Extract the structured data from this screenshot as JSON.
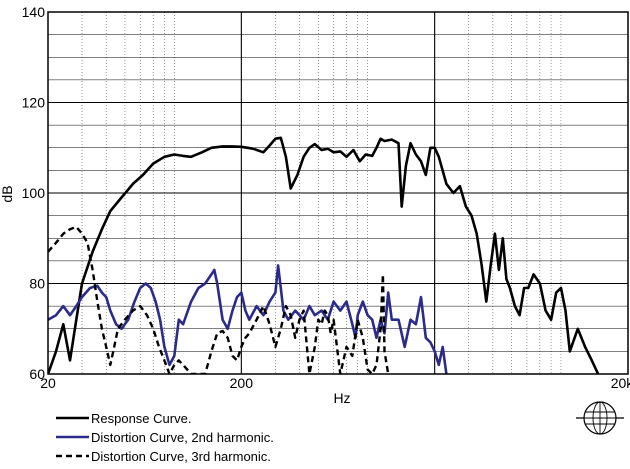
{
  "chart_data": {
    "type": "line",
    "title": "",
    "xlabel": "Hz",
    "ylabel": "dB",
    "x_scale": "log",
    "xlim": [
      20,
      20000
    ],
    "ylim": [
      60,
      140
    ],
    "x_tick_labels": [
      "20",
      "200",
      "20k"
    ],
    "y_ticks": [
      60,
      80,
      100,
      120,
      140
    ],
    "grid": true,
    "legend_position": "bottom-left",
    "series": [
      {
        "name": "Response Curve.",
        "color": "#000000",
        "style": "solid",
        "points": [
          [
            20,
            60
          ],
          [
            22,
            65
          ],
          [
            24,
            71
          ],
          [
            26,
            63
          ],
          [
            28,
            72
          ],
          [
            30,
            80
          ],
          [
            34,
            87
          ],
          [
            38,
            92
          ],
          [
            42,
            96
          ],
          [
            48,
            99
          ],
          [
            55,
            102
          ],
          [
            62,
            104
          ],
          [
            70,
            106.5
          ],
          [
            80,
            108
          ],
          [
            90,
            108.5
          ],
          [
            100,
            108.2
          ],
          [
            110,
            108
          ],
          [
            125,
            109
          ],
          [
            140,
            110
          ],
          [
            160,
            110.3
          ],
          [
            180,
            110.3
          ],
          [
            200,
            110.2
          ],
          [
            230,
            109.8
          ],
          [
            260,
            109
          ],
          [
            280,
            110.5
          ],
          [
            300,
            112
          ],
          [
            320,
            112.2
          ],
          [
            340,
            108
          ],
          [
            360,
            101
          ],
          [
            390,
            104
          ],
          [
            420,
            108
          ],
          [
            450,
            110
          ],
          [
            480,
            110.8
          ],
          [
            520,
            109.5
          ],
          [
            560,
            109.8
          ],
          [
            600,
            109
          ],
          [
            650,
            109.2
          ],
          [
            700,
            108
          ],
          [
            760,
            109.5
          ],
          [
            820,
            107
          ],
          [
            880,
            108.5
          ],
          [
            950,
            108.2
          ],
          [
            1000,
            110
          ],
          [
            1050,
            112
          ],
          [
            1100,
            111.5
          ],
          [
            1200,
            111.8
          ],
          [
            1300,
            111
          ],
          [
            1350,
            97
          ],
          [
            1420,
            106
          ],
          [
            1500,
            111
          ],
          [
            1600,
            108.5
          ],
          [
            1700,
            107
          ],
          [
            1800,
            104
          ],
          [
            1900,
            110
          ],
          [
            2000,
            110
          ],
          [
            2100,
            108
          ],
          [
            2300,
            102
          ],
          [
            2500,
            100
          ],
          [
            2700,
            101.5
          ],
          [
            2900,
            97
          ],
          [
            3100,
            95
          ],
          [
            3300,
            91
          ],
          [
            3500,
            84
          ],
          [
            3700,
            76
          ],
          [
            3900,
            84
          ],
          [
            4100,
            91
          ],
          [
            4300,
            83
          ],
          [
            4500,
            90
          ],
          [
            4700,
            81
          ],
          [
            4900,
            79
          ],
          [
            5200,
            75
          ],
          [
            5500,
            73
          ],
          [
            5800,
            79
          ],
          [
            6100,
            79
          ],
          [
            6500,
            82
          ],
          [
            7000,
            80
          ],
          [
            7500,
            74
          ],
          [
            8000,
            72
          ],
          [
            8500,
            78
          ],
          [
            9000,
            79
          ],
          [
            9500,
            74
          ],
          [
            10000,
            65
          ],
          [
            11000,
            70
          ],
          [
            12000,
            66
          ],
          [
            13000,
            63
          ],
          [
            14000,
            60
          ]
        ]
      },
      {
        "name": "Distortion Curve, 2nd harmonic.",
        "color": "#2b2b8c",
        "style": "solid",
        "points": [
          [
            20,
            72
          ],
          [
            22,
            73
          ],
          [
            24,
            75
          ],
          [
            26,
            73
          ],
          [
            28,
            75
          ],
          [
            30,
            77
          ],
          [
            33,
            79
          ],
          [
            36,
            79.5
          ],
          [
            38,
            78
          ],
          [
            40,
            77
          ],
          [
            42,
            74
          ],
          [
            45,
            71
          ],
          [
            48,
            70
          ],
          [
            52,
            72
          ],
          [
            56,
            76
          ],
          [
            60,
            79
          ],
          [
            64,
            80
          ],
          [
            68,
            79
          ],
          [
            72,
            76
          ],
          [
            76,
            72
          ],
          [
            80,
            66
          ],
          [
            85,
            62
          ],
          [
            90,
            64
          ],
          [
            95,
            72
          ],
          [
            100,
            71
          ],
          [
            110,
            76
          ],
          [
            120,
            79
          ],
          [
            130,
            80
          ],
          [
            140,
            82
          ],
          [
            145,
            83
          ],
          [
            150,
            80
          ],
          [
            155,
            76
          ],
          [
            160,
            72
          ],
          [
            170,
            70
          ],
          [
            180,
            74
          ],
          [
            190,
            77
          ],
          [
            200,
            78
          ],
          [
            210,
            74
          ],
          [
            220,
            72
          ],
          [
            240,
            75
          ],
          [
            260,
            73
          ],
          [
            280,
            76
          ],
          [
            300,
            78
          ],
          [
            310,
            84
          ],
          [
            320,
            79
          ],
          [
            330,
            74
          ],
          [
            350,
            72
          ],
          [
            380,
            74
          ],
          [
            400,
            73
          ],
          [
            420,
            72
          ],
          [
            450,
            75
          ],
          [
            480,
            73
          ],
          [
            520,
            74
          ],
          [
            560,
            72
          ],
          [
            600,
            76
          ],
          [
            650,
            74
          ],
          [
            700,
            76
          ],
          [
            750,
            71
          ],
          [
            780,
            68
          ],
          [
            800,
            73
          ],
          [
            850,
            76
          ],
          [
            900,
            73
          ],
          [
            950,
            72
          ],
          [
            1000,
            68
          ],
          [
            1050,
            72
          ],
          [
            1100,
            69
          ],
          [
            1150,
            78
          ],
          [
            1200,
            72
          ],
          [
            1300,
            72
          ],
          [
            1400,
            66
          ],
          [
            1500,
            72
          ],
          [
            1600,
            71
          ],
          [
            1700,
            77
          ],
          [
            1800,
            68
          ],
          [
            1900,
            67
          ],
          [
            2000,
            65
          ],
          [
            2100,
            62
          ],
          [
            2200,
            66
          ],
          [
            2300,
            60
          ]
        ]
      },
      {
        "name": "Distortion Curve, 3rd harmonic.",
        "color": "#000000",
        "style": "dashed",
        "points": [
          [
            20,
            87
          ],
          [
            22,
            89
          ],
          [
            24,
            91
          ],
          [
            26,
            92
          ],
          [
            28,
            92.5
          ],
          [
            30,
            91
          ],
          [
            32,
            89
          ],
          [
            34,
            83
          ],
          [
            36,
            76
          ],
          [
            38,
            70
          ],
          [
            40,
            66
          ],
          [
            42,
            62
          ],
          [
            44,
            66
          ],
          [
            46,
            70
          ],
          [
            50,
            72
          ],
          [
            55,
            74
          ],
          [
            60,
            75
          ],
          [
            65,
            73
          ],
          [
            70,
            70
          ],
          [
            75,
            66
          ],
          [
            80,
            63
          ],
          [
            85,
            60
          ],
          [
            90,
            62
          ],
          [
            95,
            63
          ],
          [
            100,
            62
          ],
          [
            110,
            60
          ],
          [
            120,
            60
          ],
          [
            130,
            60
          ],
          [
            140,
            65
          ],
          [
            150,
            69
          ],
          [
            160,
            69.5
          ],
          [
            170,
            68
          ],
          [
            180,
            64
          ],
          [
            190,
            63
          ],
          [
            200,
            66
          ],
          [
            210,
            68
          ],
          [
            220,
            69
          ],
          [
            240,
            72
          ],
          [
            260,
            75
          ],
          [
            280,
            71
          ],
          [
            300,
            66
          ],
          [
            320,
            70
          ],
          [
            340,
            75
          ],
          [
            360,
            73
          ],
          [
            380,
            68
          ],
          [
            400,
            72
          ],
          [
            420,
            74
          ],
          [
            450,
            60
          ],
          [
            480,
            66
          ],
          [
            500,
            72
          ],
          [
            520,
            71
          ],
          [
            540,
            74
          ],
          [
            560,
            73
          ],
          [
            580,
            69
          ],
          [
            600,
            72
          ],
          [
            650,
            60
          ],
          [
            700,
            66
          ],
          [
            750,
            64
          ],
          [
            800,
            72
          ],
          [
            850,
            68
          ],
          [
            900,
            61
          ],
          [
            950,
            60
          ],
          [
            1000,
            62
          ],
          [
            1050,
            70
          ],
          [
            1080,
            82
          ],
          [
            1100,
            65
          ],
          [
            1150,
            60
          ]
        ]
      }
    ]
  }
}
